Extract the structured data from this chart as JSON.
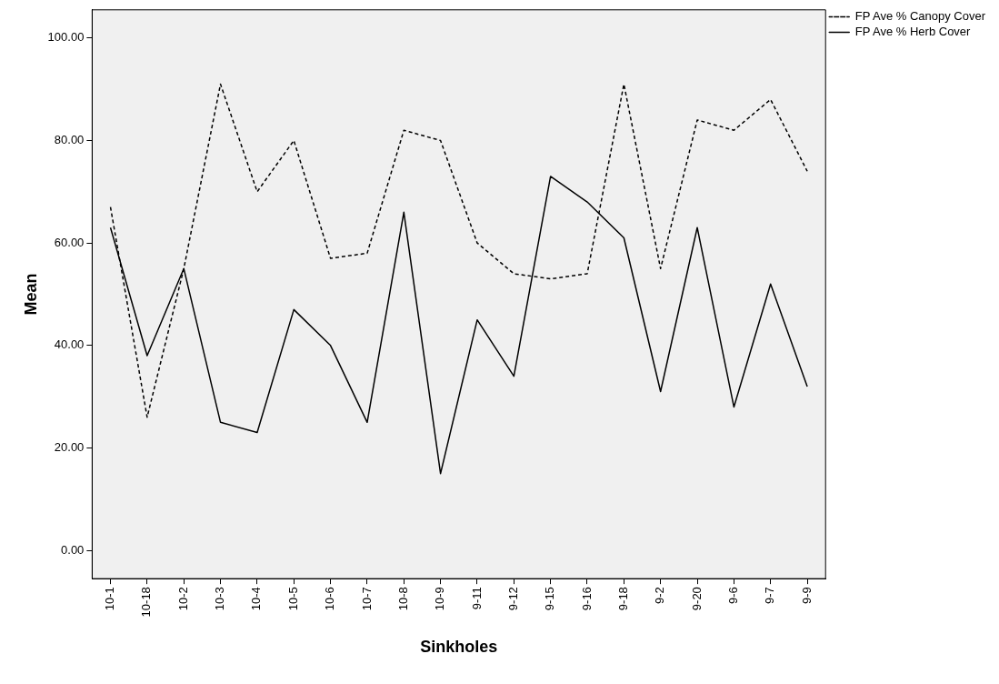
{
  "chart_data": {
    "type": "line",
    "xlabel": "Sinkholes",
    "ylabel": "Mean",
    "categories": [
      "10-1",
      "10-18",
      "10-2",
      "10-3",
      "10-4",
      "10-5",
      "10-6",
      "10-7",
      "10-8",
      "10-9",
      "9-11",
      "9-12",
      "9-15",
      "9-16",
      "9-18",
      "9-2",
      "9-20",
      "9-6",
      "9-7",
      "9-9"
    ],
    "series": [
      {
        "name": "FP Ave % Canopy Cover",
        "color": "#000000",
        "line_style": "dashed",
        "values": [
          67,
          26,
          55,
          91,
          70,
          80,
          57,
          58,
          82,
          80,
          60,
          54,
          53,
          54,
          91,
          55,
          84,
          82,
          88,
          74
        ]
      },
      {
        "name": "FP Ave % Herb Cover",
        "color": "#000000",
        "line_style": "solid",
        "values": [
          63,
          38,
          55,
          25,
          23,
          47,
          40,
          25,
          66,
          15,
          45,
          34,
          73,
          68,
          61,
          31,
          63,
          28,
          52,
          32
        ]
      }
    ],
    "ylim": [
      -5.5,
      105.5
    ],
    "yticks": [
      {
        "value": 0,
        "label": "0.00"
      },
      {
        "value": 20,
        "label": "20.00"
      },
      {
        "value": 40,
        "label": "40.00"
      },
      {
        "value": 60,
        "label": "60.00"
      },
      {
        "value": 80,
        "label": "80.00"
      },
      {
        "value": 100,
        "label": "100.00"
      }
    ],
    "grid": false,
    "legend": "top right",
    "marker": "none"
  }
}
